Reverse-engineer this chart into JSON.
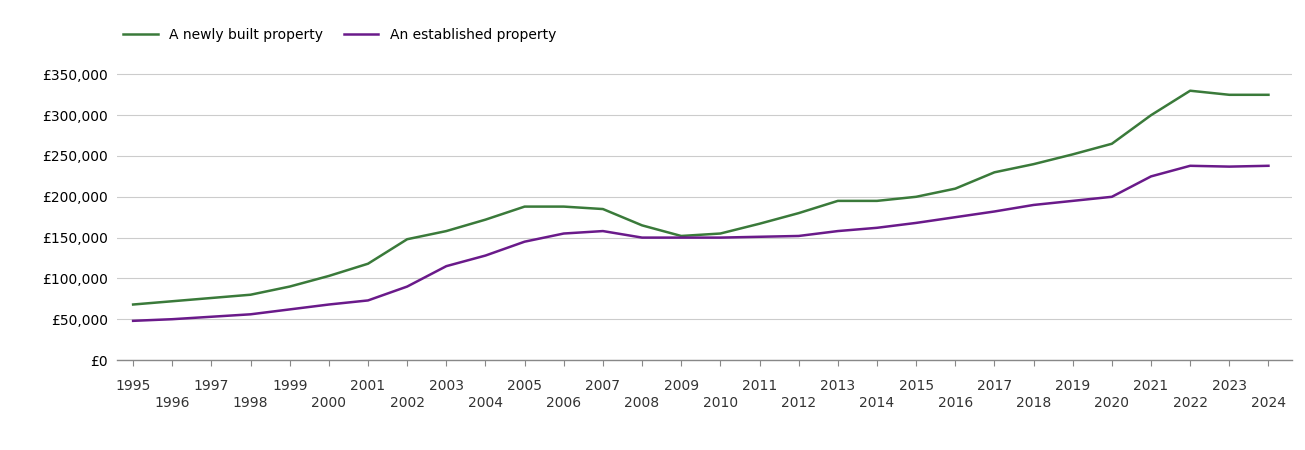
{
  "years": [
    1995,
    1996,
    1997,
    1998,
    1999,
    2000,
    2001,
    2002,
    2003,
    2004,
    2005,
    2006,
    2007,
    2008,
    2009,
    2010,
    2011,
    2012,
    2013,
    2014,
    2015,
    2016,
    2017,
    2018,
    2019,
    2020,
    2021,
    2022,
    2023,
    2024
  ],
  "new_build": [
    68000,
    72000,
    76000,
    80000,
    90000,
    103000,
    118000,
    148000,
    158000,
    172000,
    188000,
    188000,
    185000,
    165000,
    152000,
    155000,
    167000,
    180000,
    195000,
    195000,
    200000,
    210000,
    230000,
    240000,
    252000,
    265000,
    300000,
    330000,
    325000,
    325000
  ],
  "established": [
    48000,
    50000,
    53000,
    56000,
    62000,
    68000,
    73000,
    90000,
    115000,
    128000,
    145000,
    155000,
    158000,
    150000,
    150000,
    150000,
    151000,
    152000,
    158000,
    162000,
    168000,
    175000,
    182000,
    190000,
    195000,
    200000,
    225000,
    238000,
    237000,
    238000
  ],
  "new_build_color": "#3a7a3a",
  "established_color": "#6a1a8a",
  "new_build_label": "A newly built property",
  "established_label": "An established property",
  "ylim": [
    0,
    375000
  ],
  "yticks": [
    0,
    50000,
    100000,
    150000,
    200000,
    250000,
    300000,
    350000
  ],
  "ytick_labels": [
    "£0",
    "£50,000",
    "£100,000",
    "£150,000",
    "£200,000",
    "£250,000",
    "£300,000",
    "£350,000"
  ],
  "xlim_min": 1994.6,
  "xlim_max": 2024.6,
  "background_color": "#ffffff",
  "grid_color": "#cccccc",
  "line_width": 1.8,
  "legend_fontsize": 10,
  "tick_fontsize": 10
}
